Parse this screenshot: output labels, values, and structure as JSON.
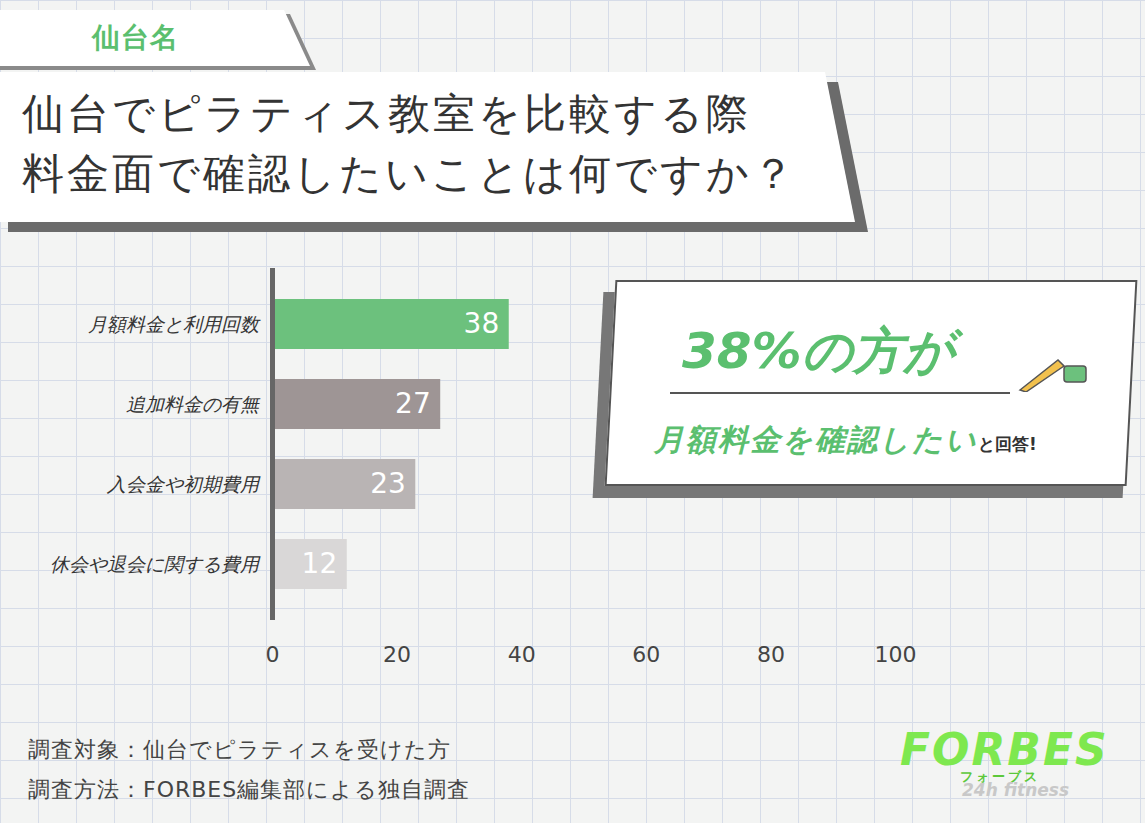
{
  "tag": "仙台名",
  "chart_data": {
    "type": "bar",
    "orientation": "horizontal",
    "title": "仙台でピラティス教室を比較する際\n料金面で確認したいことは何ですか？",
    "categories": [
      "月額料金と利用回数",
      "追加料金の有無",
      "入会金や初期費用",
      "休会や退会に関する費用"
    ],
    "values": [
      38,
      27,
      23,
      12
    ],
    "colors": [
      "#6cc17d",
      "#9e9595",
      "#b9b4b4",
      "#d9d7d7"
    ],
    "xlim": [
      0,
      100
    ],
    "xticks": [
      0,
      20,
      40,
      60,
      80,
      100
    ],
    "grid": false,
    "data_labels": true
  },
  "callout": {
    "headline": "38%の方が",
    "text": "月額料金を確認したい",
    "suffix": "と回答!"
  },
  "notes": [
    "調査対象：仙台でピラティスを受けた方",
    "調査方法：FORBES編集部による独自調査"
  ],
  "logo": {
    "name": "FORBES",
    "kana": "フォーブス",
    "sub": "24h fitness"
  }
}
